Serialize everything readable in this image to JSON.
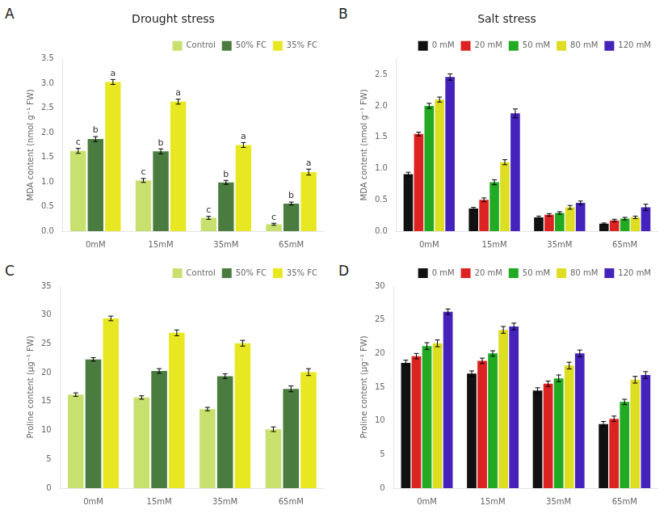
{
  "chart_data": [
    {
      "type": "bar",
      "title": "Drought stress",
      "annotations": [
        "A"
      ],
      "categories": [
        "0mM",
        "15mM",
        "35mM",
        "65mM"
      ],
      "series": [
        {
          "name": "Control",
          "color": "#c8e06e",
          "values": [
            1.63,
            1.03,
            0.27,
            0.14
          ],
          "errors": [
            0.05,
            0.04,
            0.03,
            0.02
          ],
          "annotations": [
            "c",
            "c",
            "c",
            "c"
          ]
        },
        {
          "name": "50% FC",
          "color": "#4a7c3f",
          "values": [
            1.87,
            1.62,
            0.99,
            0.56
          ],
          "errors": [
            0.05,
            0.05,
            0.04,
            0.03
          ],
          "annotations": [
            "b",
            "b",
            "b",
            "b"
          ]
        },
        {
          "name": "35% FC",
          "color": "#e8e822",
          "values": [
            3.03,
            2.63,
            1.75,
            1.2
          ],
          "errors": [
            0.05,
            0.05,
            0.05,
            0.06
          ],
          "annotations": [
            "a",
            "a",
            "a",
            "a"
          ]
        }
      ],
      "ylabel": "MDA content (nmol g⁻¹ FW)",
      "ylim": [
        0,
        3.5
      ],
      "yticks": [
        {
          "value": 0,
          "label": "0.0"
        },
        0.5,
        {
          "value": 1,
          "label": "1.0"
        },
        1.5,
        {
          "value": 2,
          "label": "2.0"
        },
        2.5,
        {
          "value": 3,
          "label": "3.0"
        },
        3.5
      ],
      "grid": false,
      "legend": "upper right"
    },
    {
      "type": "bar",
      "title": "Salt stress",
      "annotations": [
        "B"
      ],
      "categories": [
        "0mM",
        "15mM",
        "35mM",
        "65mM"
      ],
      "series": [
        {
          "name": "0 mM",
          "color": "#111111",
          "values": [
            0.91,
            0.36,
            0.22,
            0.12
          ],
          "errors": [
            0.03,
            0.02,
            0.02,
            0.01
          ]
        },
        {
          "name": "20 mM",
          "color": "#dd2222",
          "values": [
            1.55,
            0.5,
            0.26,
            0.17
          ],
          "errors": [
            0.03,
            0.03,
            0.02,
            0.02
          ]
        },
        {
          "name": "50 mM",
          "color": "#22aa22",
          "values": [
            2.0,
            0.78,
            0.29,
            0.2
          ],
          "errors": [
            0.04,
            0.04,
            0.02,
            0.02
          ]
        },
        {
          "name": "80 mM",
          "color": "#dddd22",
          "values": [
            2.1,
            1.1,
            0.38,
            0.22
          ],
          "errors": [
            0.04,
            0.04,
            0.03,
            0.02
          ]
        },
        {
          "name": "120 mM",
          "color": "#4422bb",
          "values": [
            2.46,
            1.88,
            0.45,
            0.38
          ],
          "errors": [
            0.05,
            0.07,
            0.03,
            0.05
          ]
        }
      ],
      "ylabel": "MDA content (nmol g⁻¹ FW)",
      "ylim": [
        0,
        2.75
      ],
      "yticks": [
        {
          "value": 0,
          "label": "0.0"
        },
        0.5,
        {
          "value": 1,
          "label": "1.0"
        },
        1.5,
        {
          "value": 2,
          "label": "2.0"
        },
        2.5
      ],
      "grid": false,
      "legend": "upper right"
    },
    {
      "type": "bar",
      "annotations": [
        "C"
      ],
      "categories": [
        "0mM",
        "15mM",
        "35mM",
        "65mM"
      ],
      "series": [
        {
          "name": "Control",
          "color": "#c8e06e",
          "values": [
            16.2,
            15.7,
            13.7,
            10.2
          ],
          "errors": [
            0.3,
            0.3,
            0.3,
            0.4
          ]
        },
        {
          "name": "50% FC",
          "color": "#4a7c3f",
          "values": [
            22.3,
            20.3,
            19.4,
            17.2
          ],
          "errors": [
            0.3,
            0.4,
            0.4,
            0.5
          ]
        },
        {
          "name": "35% FC",
          "color": "#e8e822",
          "values": [
            29.4,
            26.9,
            25.1,
            20.1
          ],
          "errors": [
            0.4,
            0.5,
            0.5,
            0.6
          ]
        }
      ],
      "ylabel": "Proline content (μg⁻¹ FW)",
      "ylim": [
        0,
        35
      ],
      "yticks": [
        0,
        5,
        10,
        15,
        20,
        25,
        30,
        35
      ],
      "grid": false,
      "legend": "upper right"
    },
    {
      "type": "bar",
      "annotations": [
        "D"
      ],
      "categories": [
        "0mM",
        "15mM",
        "35mM",
        "65mM"
      ],
      "series": [
        {
          "name": "0 mM",
          "color": "#111111",
          "values": [
            18.6,
            17.0,
            14.5,
            9.5
          ],
          "errors": [
            0.4,
            0.4,
            0.4,
            0.4
          ]
        },
        {
          "name": "20 mM",
          "color": "#dd2222",
          "values": [
            19.6,
            18.9,
            15.5,
            10.3
          ],
          "errors": [
            0.4,
            0.4,
            0.4,
            0.4
          ]
        },
        {
          "name": "50 mM",
          "color": "#22aa22",
          "values": [
            21.1,
            20.0,
            16.3,
            12.8
          ],
          "errors": [
            0.5,
            0.4,
            0.5,
            0.4
          ]
        },
        {
          "name": "80 mM",
          "color": "#dddd22",
          "values": [
            21.5,
            23.5,
            18.2,
            16.1
          ],
          "errors": [
            0.5,
            0.5,
            0.5,
            0.5
          ]
        },
        {
          "name": "120 mM",
          "color": "#4422bb",
          "values": [
            26.2,
            24.0,
            20.0,
            16.8
          ],
          "errors": [
            0.4,
            0.5,
            0.5,
            0.5
          ]
        }
      ],
      "ylabel": "Proline content (μg⁻¹ FW)",
      "ylim": [
        0,
        30
      ],
      "yticks": [
        0,
        5,
        10,
        15,
        20,
        25,
        30
      ],
      "grid": false,
      "legend": "upper right"
    }
  ]
}
